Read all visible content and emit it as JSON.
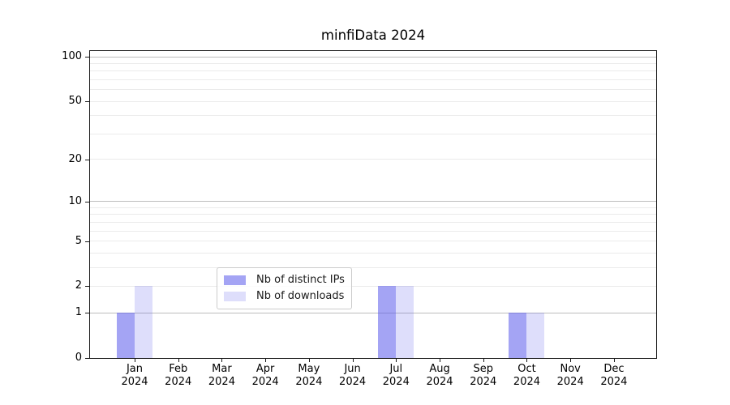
{
  "title": "minfiData 2024",
  "chart_data": {
    "type": "bar",
    "title": "minfiData 2024",
    "categories": [
      "Jan",
      "Feb",
      "Mar",
      "Apr",
      "May",
      "Jun",
      "Jul",
      "Aug",
      "Sep",
      "Oct",
      "Nov",
      "Dec"
    ],
    "year": "2024",
    "series": [
      {
        "name": "Nb of distinct IPs",
        "color": "rgba(90,90,235,0.55)",
        "values": [
          1,
          0,
          0,
          0,
          0,
          0,
          2,
          0,
          0,
          1,
          0,
          0
        ]
      },
      {
        "name": "Nb of downloads",
        "color": "rgba(90,90,235,0.20)",
        "values": [
          2,
          0,
          0,
          0,
          0,
          0,
          2,
          0,
          0,
          1,
          0,
          0
        ]
      }
    ],
    "yaxis": {
      "scale": "log1p",
      "tick_labels": [
        0,
        1,
        2,
        5,
        10,
        20,
        50,
        100
      ],
      "major_gridlines": [
        1,
        10,
        100
      ],
      "minor_gridlines": [
        2,
        3,
        4,
        5,
        6,
        7,
        8,
        9,
        20,
        30,
        40,
        50,
        60,
        70,
        80,
        90
      ],
      "range": [
        0,
        100
      ]
    },
    "xlabel": "",
    "ylabel": "",
    "grid": true,
    "legend": {
      "position": "lower center",
      "entries": [
        "Nb of distinct IPs",
        "Nb of downloads"
      ]
    }
  }
}
